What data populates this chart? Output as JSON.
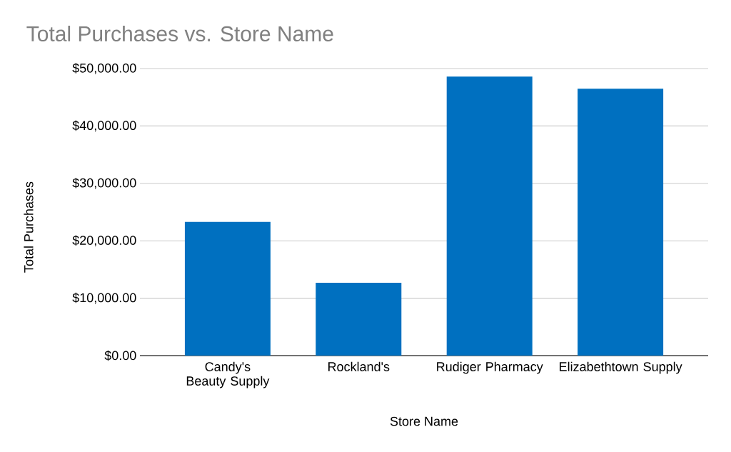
{
  "chart_data": {
    "type": "bar",
    "title": "Total Purchases vs. Store Name",
    "xlabel": "Store Name",
    "ylabel": "Total Purchases",
    "categories": [
      "Candy's Beauty Supply",
      "Rockland's",
      "Rudiger Pharmacy",
      "Elizabethtown Supply"
    ],
    "values": [
      23300,
      12700,
      48600,
      46500
    ],
    "color": "#0070c0",
    "ylim": [
      0,
      50000
    ],
    "yticks": [
      {
        "value": 0,
        "label": "$0.00"
      },
      {
        "value": 10000,
        "label": "$10,000.00"
      },
      {
        "value": 20000,
        "label": "$20,000.00"
      },
      {
        "value": 30000,
        "label": "$30,000.00"
      },
      {
        "value": 40000,
        "label": "$40,000.00"
      },
      {
        "value": 50000,
        "label": "$50,000.00"
      }
    ],
    "grid": "y"
  }
}
